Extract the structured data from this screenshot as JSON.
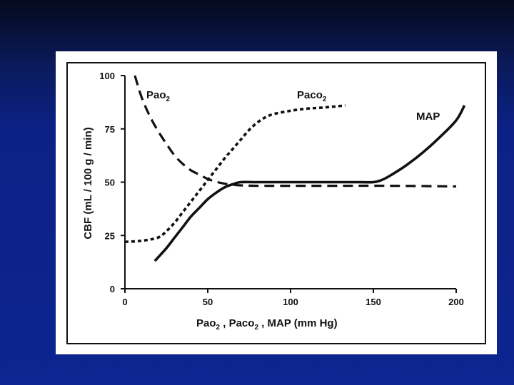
{
  "slide": {
    "background_colors": [
      "#050a1e",
      "#0b2185",
      "#0c2590"
    ],
    "panel_color": "#ffffff"
  },
  "chart_data": {
    "type": "line",
    "xlabel_parts": [
      "Pao",
      "2",
      " ,   Paco",
      "2",
      " ,   MAP   (mm Hg)"
    ],
    "ylabel_parts": [
      "CBF  (mL / 100 g / min)"
    ],
    "xlim": [
      0,
      200
    ],
    "ylim": [
      0,
      100
    ],
    "xticks": [
      0,
      50,
      100,
      150,
      200
    ],
    "yticks": [
      0,
      25,
      50,
      75,
      100
    ],
    "grid": false,
    "series": [
      {
        "name": "Pao2",
        "label_parts": [
          "Pao",
          "2"
        ],
        "style": "dashed",
        "x": [
          6,
          10,
          15,
          20,
          25,
          30,
          35,
          40,
          45,
          50,
          55,
          60,
          65,
          70,
          80,
          100,
          130,
          160,
          200
        ],
        "y": [
          100,
          90,
          81,
          74,
          68,
          62.5,
          58.5,
          55.5,
          53.5,
          51.5,
          50.2,
          49.3,
          48.8,
          48.5,
          48.3,
          48.3,
          48.3,
          48.3,
          48
        ]
      },
      {
        "name": "Paco2",
        "label_parts": [
          "Paco",
          "2"
        ],
        "style": "dotted",
        "x": [
          0,
          10,
          20,
          25,
          30,
          35,
          40,
          45,
          50,
          55,
          60,
          65,
          70,
          75,
          80,
          85,
          90,
          100,
          110,
          120,
          133
        ],
        "y": [
          22,
          22.5,
          24,
          27,
          31,
          36,
          41,
          46,
          51,
          56,
          61,
          65.5,
          70,
          74.5,
          78,
          80.5,
          82,
          83.5,
          84.5,
          85,
          86
        ]
      },
      {
        "name": "MAP",
        "label_parts": [
          "MAP"
        ],
        "style": "solid",
        "x": [
          18,
          25,
          30,
          35,
          40,
          45,
          50,
          55,
          60,
          65,
          70,
          80,
          100,
          120,
          140,
          150,
          155,
          160,
          170,
          180,
          190,
          200,
          205
        ],
        "y": [
          13,
          19,
          24,
          29,
          34,
          38,
          42,
          45,
          47.5,
          49,
          50,
          50,
          50,
          50,
          50,
          50,
          51,
          53,
          58,
          64,
          71,
          79,
          86
        ]
      }
    ]
  }
}
